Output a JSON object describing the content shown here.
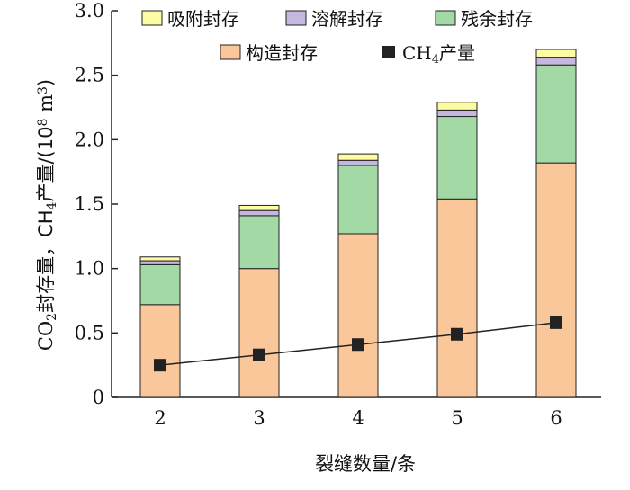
{
  "chart_data": {
    "type": "bar",
    "stacked": true,
    "categories": [
      "2",
      "3",
      "4",
      "5",
      "6"
    ],
    "series": [
      {
        "name": "构造封存",
        "values": [
          0.72,
          1.0,
          1.27,
          1.54,
          1.82
        ],
        "color": "#f9c79a"
      },
      {
        "name": "残余封存",
        "values": [
          0.31,
          0.41,
          0.53,
          0.64,
          0.76
        ],
        "color": "#a3d9a5"
      },
      {
        "name": "溶解封存",
        "values": [
          0.03,
          0.04,
          0.04,
          0.05,
          0.06
        ],
        "color": "#c5b8e0"
      },
      {
        "name": "吸附封存",
        "values": [
          0.03,
          0.04,
          0.05,
          0.06,
          0.06
        ],
        "color": "#fdfba4"
      }
    ],
    "line_series": {
      "name_prefix": "CH",
      "name_sub": "4",
      "name_suffix": "产量",
      "values": [
        0.25,
        0.33,
        0.41,
        0.49,
        0.58
      ],
      "color": "#222222"
    },
    "xlabel": "裂缝数量/条",
    "ylabel": {
      "part1": "CO",
      "sub1": "2",
      "part2": "封存量，CH",
      "sub2": "4",
      "part3": "产量/(10",
      "sup": "8",
      "part4": " m",
      "sup2": "3",
      "part5": ")"
    },
    "ylim": [
      0,
      3.0
    ],
    "yticks": [
      "0",
      "0.5",
      "1.0",
      "1.5",
      "2.0",
      "2.5",
      "3.0"
    ],
    "legend_position": "top",
    "grid": false
  }
}
